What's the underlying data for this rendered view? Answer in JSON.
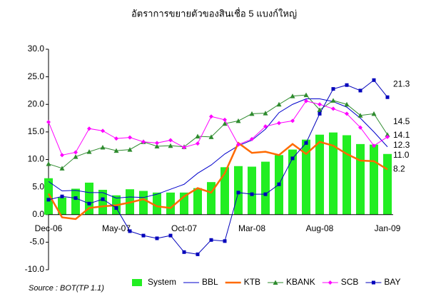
{
  "chart_data": {
    "type": "combo",
    "title": "อัตราการขยายตัวของสินเชื่อ 5 แบงก์ใหญ่",
    "source": "Source : BOT(TP 1.1)",
    "categories": [
      "Dec-06",
      null,
      null,
      null,
      null,
      "May-07",
      null,
      null,
      null,
      null,
      "Oct-07",
      null,
      null,
      null,
      null,
      "Mar-08",
      null,
      null,
      null,
      null,
      "Aug-08",
      null,
      null,
      null,
      null,
      "Jan-09"
    ],
    "ylim": [
      -10,
      30
    ],
    "yticks": [
      {
        "value": -10,
        "label": "-10.0"
      },
      {
        "value": -5,
        "label": "-5.0"
      },
      {
        "value": 0,
        "label": "0.0"
      },
      {
        "value": 5,
        "label": "5.0"
      },
      {
        "value": 10,
        "label": "10.0"
      },
      {
        "value": 15,
        "label": "15.0"
      },
      {
        "value": 20,
        "label": "20.0"
      },
      {
        "value": 25,
        "label": "25.0"
      },
      {
        "value": 30,
        "label": "30.0"
      }
    ],
    "grid": false,
    "legend": "bottom",
    "series": [
      {
        "name": "System",
        "type": "bar",
        "color": "#22ee22",
        "values": [
          6.6,
          3.1,
          4.7,
          5.8,
          4.5,
          3.5,
          4.6,
          4.3,
          4.0,
          4.0,
          4.0,
          4.8,
          5.9,
          8.6,
          8.8,
          8.7,
          9.6,
          10.8,
          11.8,
          13.6,
          14.5,
          14.9,
          14.4,
          12.8,
          12.7,
          11.0
        ],
        "value_labels": [
          null,
          null,
          null,
          null,
          null,
          null,
          null,
          null,
          null,
          null,
          null,
          null,
          null,
          null,
          null,
          null,
          null,
          null,
          null,
          null,
          null,
          null,
          null,
          null,
          null,
          "11.0"
        ]
      },
      {
        "name": "BBL",
        "type": "line",
        "color": "#0000cc",
        "marker": "none",
        "values": [
          6.0,
          4.3,
          4.4,
          4.0,
          4.0,
          3.0,
          3.2,
          3.1,
          3.7,
          4.6,
          5.5,
          7.5,
          9.0,
          11.0,
          12.5,
          13.5,
          15.5,
          18.5,
          20.0,
          21.0,
          21.0,
          20.5,
          19.5,
          17.5,
          15.0,
          12.3
        ],
        "value_labels": [
          null,
          null,
          null,
          null,
          null,
          null,
          null,
          null,
          null,
          null,
          null,
          null,
          null,
          null,
          null,
          null,
          null,
          null,
          null,
          null,
          null,
          null,
          null,
          null,
          null,
          "12.3"
        ]
      },
      {
        "name": "KTB",
        "type": "line",
        "color": "#ff6a00",
        "marker": "none",
        "values": [
          3.8,
          -0.5,
          -0.8,
          1.2,
          1.5,
          1.7,
          2.2,
          2.8,
          1.5,
          1.2,
          3.3,
          4.8,
          4.0,
          7.5,
          13.0,
          11.2,
          11.4,
          10.8,
          12.8,
          11.0,
          13.2,
          12.5,
          11.0,
          9.8,
          9.7,
          8.2
        ],
        "value_labels": [
          null,
          null,
          null,
          null,
          null,
          null,
          null,
          null,
          null,
          null,
          null,
          null,
          null,
          null,
          null,
          null,
          null,
          null,
          null,
          null,
          null,
          null,
          null,
          null,
          null,
          "8.2"
        ]
      },
      {
        "name": "KBANK",
        "type": "line",
        "color": "#2e8b2e",
        "marker": "triangle",
        "values": [
          9.2,
          8.4,
          10.5,
          11.4,
          12.2,
          11.6,
          11.8,
          13.2,
          12.4,
          12.5,
          12.3,
          14.2,
          14.1,
          16.5,
          17.0,
          18.3,
          18.4,
          20.0,
          21.5,
          21.7,
          19.0,
          20.7,
          20.0,
          18.0,
          18.3,
          14.5
        ],
        "value_labels": [
          null,
          null,
          null,
          null,
          null,
          null,
          null,
          null,
          null,
          null,
          null,
          null,
          null,
          null,
          null,
          null,
          null,
          null,
          null,
          null,
          null,
          null,
          null,
          null,
          null,
          "14.5"
        ]
      },
      {
        "name": "SCB",
        "type": "line",
        "color": "#ff00ff",
        "marker": "diamond",
        "values": [
          16.8,
          10.8,
          11.3,
          15.6,
          15.2,
          13.8,
          14.0,
          13.2,
          13.0,
          13.5,
          12.2,
          12.9,
          17.8,
          17.2,
          12.7,
          13.7,
          16.0,
          16.6,
          17.0,
          20.6,
          20.0,
          19.2,
          18.3,
          15.8,
          12.5,
          14.1
        ],
        "value_labels": [
          null,
          null,
          null,
          null,
          null,
          null,
          null,
          null,
          null,
          null,
          null,
          null,
          null,
          null,
          null,
          null,
          null,
          null,
          null,
          null,
          null,
          null,
          null,
          null,
          null,
          "14.1"
        ]
      },
      {
        "name": "BAY",
        "type": "line",
        "color": "#0000bb",
        "marker": "square",
        "values": [
          2.7,
          3.3,
          3.0,
          2.0,
          2.8,
          1.2,
          -3.0,
          -3.8,
          -4.3,
          -3.8,
          -6.8,
          -7.2,
          -4.6,
          -4.8,
          4.0,
          3.7,
          3.7,
          5.5,
          10.2,
          13.0,
          18.3,
          22.8,
          23.5,
          22.5,
          24.4,
          21.3
        ],
        "value_labels": [
          null,
          null,
          null,
          null,
          null,
          null,
          null,
          null,
          null,
          null,
          null,
          null,
          null,
          null,
          null,
          null,
          null,
          null,
          null,
          null,
          null,
          null,
          null,
          null,
          null,
          "21.3"
        ]
      }
    ]
  }
}
